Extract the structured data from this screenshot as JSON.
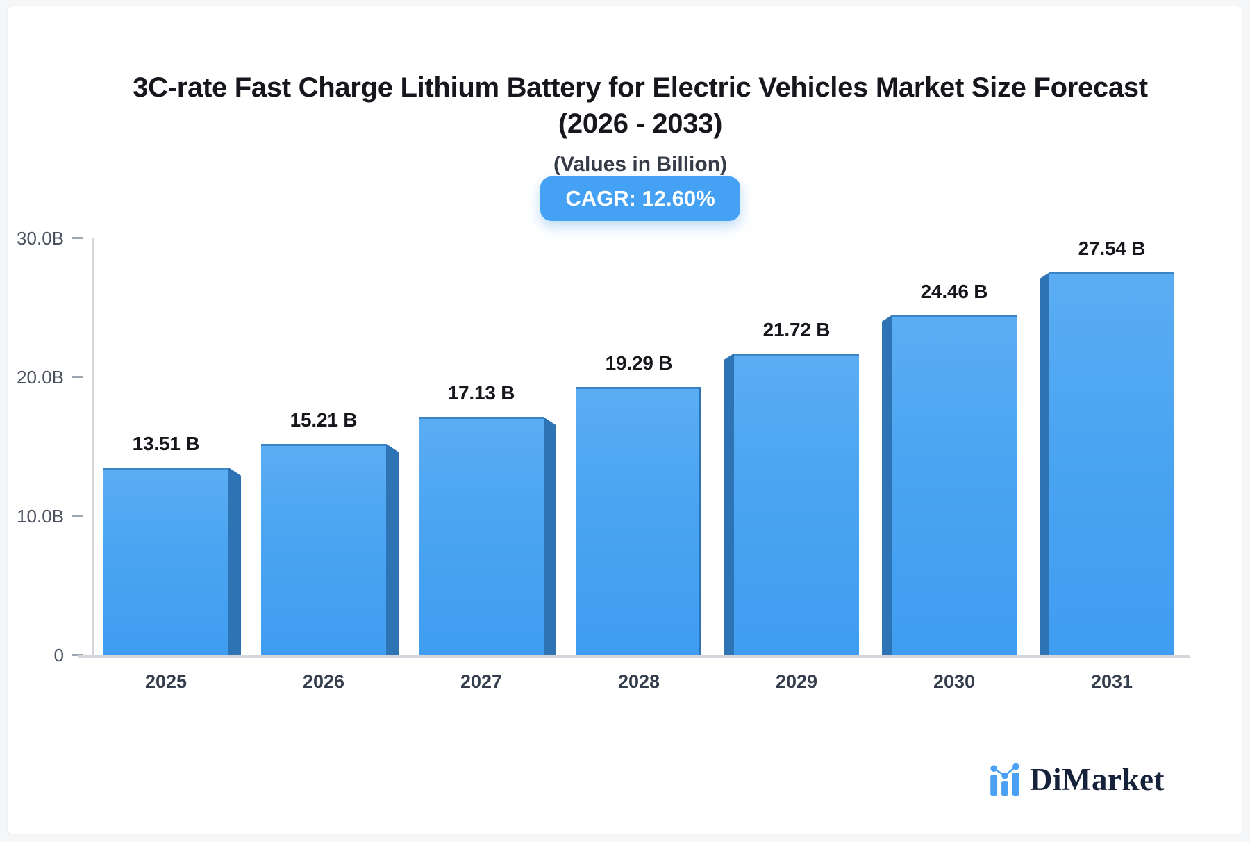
{
  "header": {
    "title_line1": "3C-rate Fast Charge Lithium Battery for Electric Vehicles Market Size Forecast",
    "title_line2": "(2026 - 2033)",
    "subtitle": "(Values in Billion)",
    "cagr_badge": "CAGR: 12.60%"
  },
  "chart_data": {
    "type": "bar",
    "title": "3C-rate Fast Charge Lithium Battery for Electric Vehicles Market Size Forecast (2026 - 2033)",
    "subtitle": "(Values in Billion)",
    "cagr": "12.60%",
    "categories": [
      "2025",
      "2026",
      "2027",
      "2028",
      "2029",
      "2030",
      "2031"
    ],
    "values": [
      13.51,
      15.21,
      17.13,
      19.29,
      21.72,
      24.46,
      27.54
    ],
    "value_labels": [
      "13.51 B",
      "15.21 B",
      "17.13 B",
      "19.29 B",
      "21.72 B",
      "24.46 B",
      "27.54 B"
    ],
    "xlabel": "",
    "ylabel": "",
    "ylim": [
      0,
      30
    ],
    "yticks": [
      {
        "value": 30,
        "label": "30.0B"
      },
      {
        "value": 20,
        "label": "20.0B"
      },
      {
        "value": 10,
        "label": "10.0B"
      },
      {
        "value": 0,
        "label": "0"
      }
    ],
    "grid": false,
    "legend": false,
    "style_3d": true,
    "colors": {
      "bar_face_top": "#5badf3",
      "bar_face_bottom": "#3f9df1",
      "bar_side": "#2e73b4",
      "bar_outline": "#3b84c6",
      "badge": "#45a1f3",
      "axis": "#d3d7dc"
    }
  },
  "footer": {
    "brand": "DiMarket"
  }
}
